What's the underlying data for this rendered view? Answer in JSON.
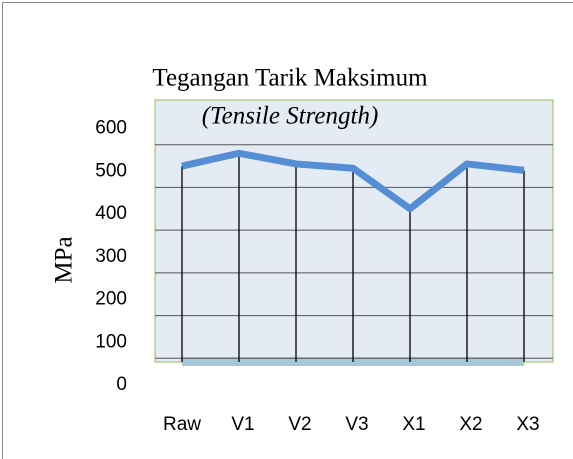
{
  "chart_data": {
    "type": "line",
    "title": "Tegangan Tarik Maksimum",
    "subtitle": "(Tensile Strength)",
    "y_label": "MPa",
    "categories": [
      "Raw",
      "V1",
      "V2",
      "V3",
      "X1",
      "X2",
      "X3"
    ],
    "series": [
      {
        "name": "Tensile Strength",
        "color": "#558ed5",
        "values": [
          550,
          580,
          555,
          545,
          450,
          555,
          540
        ]
      }
    ],
    "ylim": [
      0,
      700
    ],
    "yticks": [
      0,
      100,
      200,
      300,
      400,
      500,
      600
    ],
    "grid": true
  }
}
